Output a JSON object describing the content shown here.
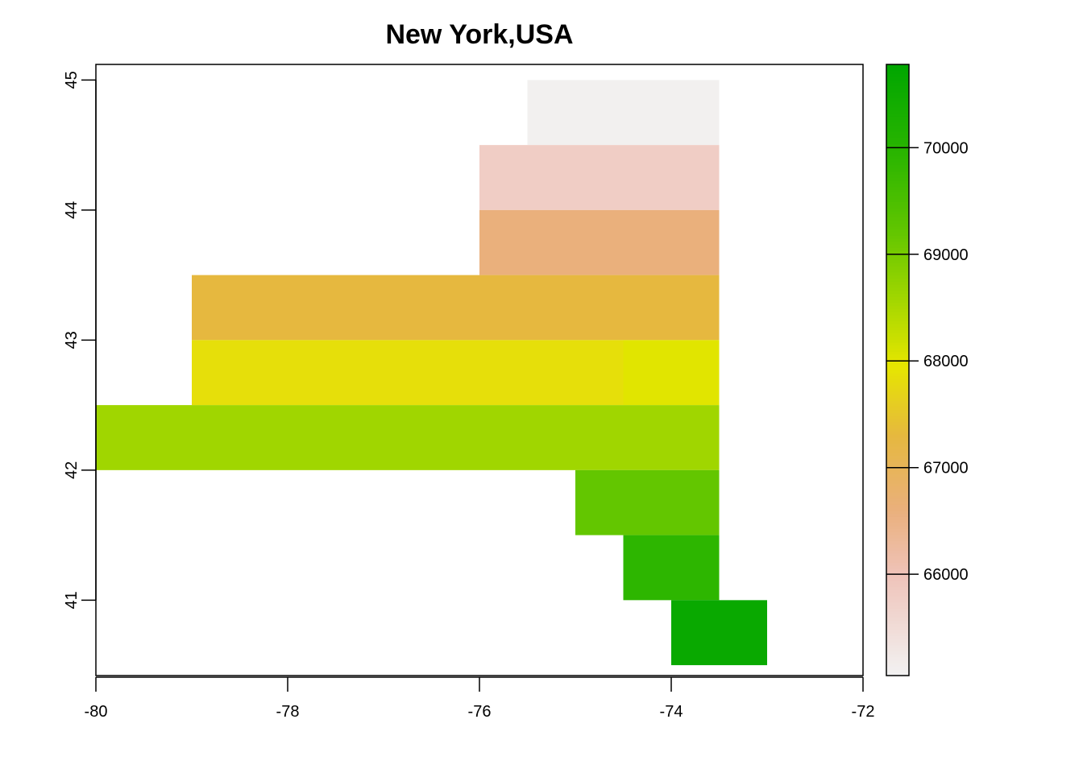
{
  "chart_data": {
    "type": "heatmap",
    "title": "New York,USA",
    "xlabel": "",
    "ylabel": "",
    "xlim": [
      -80,
      -72
    ],
    "ylim": [
      40.42,
      45.12
    ],
    "x_ticks": [
      -80,
      -78,
      -76,
      -74,
      -72
    ],
    "x_tick_labels": [
      "-80",
      "-78",
      "-76",
      "-74",
      "-72"
    ],
    "y_ticks": [
      41,
      42,
      43,
      44,
      45
    ],
    "y_tick_labels": [
      "41",
      "42",
      "43",
      "44",
      "45"
    ],
    "grid": false,
    "cell_size": 0.5,
    "cells": [
      {
        "x0": -75.5,
        "x1": -73.5,
        "y0": 44.5,
        "y1": 45.0,
        "value": 65100
      },
      {
        "x0": -76.0,
        "x1": -73.5,
        "y0": 44.0,
        "y1": 44.5,
        "value": 65800
      },
      {
        "x0": -76.0,
        "x1": -73.5,
        "y0": 43.5,
        "y1": 44.0,
        "value": 66600
      },
      {
        "x0": -79.0,
        "x1": -73.5,
        "y0": 43.0,
        "y1": 43.5,
        "value": 67300
      },
      {
        "x0": -79.0,
        "x1": -74.5,
        "y0": 42.5,
        "y1": 43.0,
        "value": 67850
      },
      {
        "x0": -74.5,
        "x1": -73.5,
        "y0": 42.5,
        "y1": 43.0,
        "value": 68000
      },
      {
        "x0": -80.0,
        "x1": -73.5,
        "y0": 42.0,
        "y1": 42.5,
        "value": 68600
      },
      {
        "x0": -75.0,
        "x1": -73.5,
        "y0": 41.5,
        "y1": 42.0,
        "value": 69200
      },
      {
        "x0": -74.5,
        "x1": -73.5,
        "y0": 41.0,
        "y1": 41.5,
        "value": 69900
      },
      {
        "x0": -74.0,
        "x1": -73.0,
        "y0": 40.5,
        "y1": 41.0,
        "value": 70600
      }
    ],
    "legend": {
      "type": "colorbar",
      "position": "right",
      "min": 65050,
      "max": 70780,
      "ticks": [
        66000,
        67000,
        68000,
        69000,
        70000
      ],
      "tick_labels": [
        "66000",
        "67000",
        "68000",
        "69000",
        "70000"
      ],
      "color_stops": [
        {
          "value": 65050,
          "color": "#f2f2f2"
        },
        {
          "value": 66000,
          "color": "#efc3b9"
        },
        {
          "value": 66600,
          "color": "#eab07c"
        },
        {
          "value": 67300,
          "color": "#e6b83f"
        },
        {
          "value": 67950,
          "color": "#e6e600"
        },
        {
          "value": 68600,
          "color": "#a0d600"
        },
        {
          "value": 69200,
          "color": "#63c600"
        },
        {
          "value": 69900,
          "color": "#2db600"
        },
        {
          "value": 70780,
          "color": "#00a600"
        }
      ]
    }
  }
}
